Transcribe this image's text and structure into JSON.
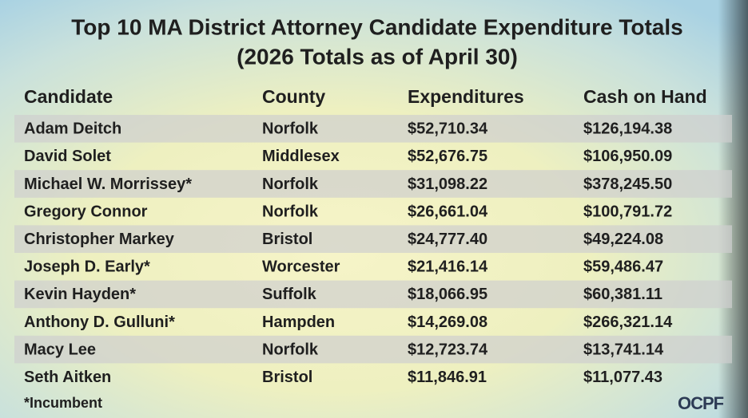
{
  "title": {
    "line1": "Top 10 MA District Attorney Candidate Expenditure Totals",
    "line2": "(2026 Totals as of April 30)"
  },
  "table": {
    "header": [
      "Candidate",
      "County",
      "Expenditures",
      "Cash on Hand"
    ],
    "rows": [
      [
        "Adam Deitch",
        "Norfolk",
        "$52,710.34",
        "$126,194.38"
      ],
      [
        "David Solet",
        "Middlesex",
        "$52,676.75",
        "$106,950.09"
      ],
      [
        "Michael W. Morrissey*",
        "Norfolk",
        "$31,098.22",
        "$378,245.50"
      ],
      [
        "Gregory Connor",
        "Norfolk",
        "$26,661.04",
        "$100,791.72"
      ],
      [
        "Christopher Markey",
        "Bristol",
        "$24,777.40",
        "$49,224.08"
      ],
      [
        "Joseph D. Early*",
        "Worcester",
        "$21,416.14",
        "$59,486.47"
      ],
      [
        "Kevin Hayden*",
        "Suffolk",
        "$18,066.95",
        "$60,381.11"
      ],
      [
        "Anthony D. Gulluni*",
        "Hampden",
        "$14,269.08",
        "$266,321.14"
      ],
      [
        "Macy Lee",
        "Norfolk",
        "$12,723.74",
        "$13,741.14"
      ],
      [
        "Seth Aitken",
        "Bristol",
        "$11,846.91",
        "$11,077.43"
      ]
    ]
  },
  "footnote": "*Incumbent",
  "logo": "OCPF"
}
